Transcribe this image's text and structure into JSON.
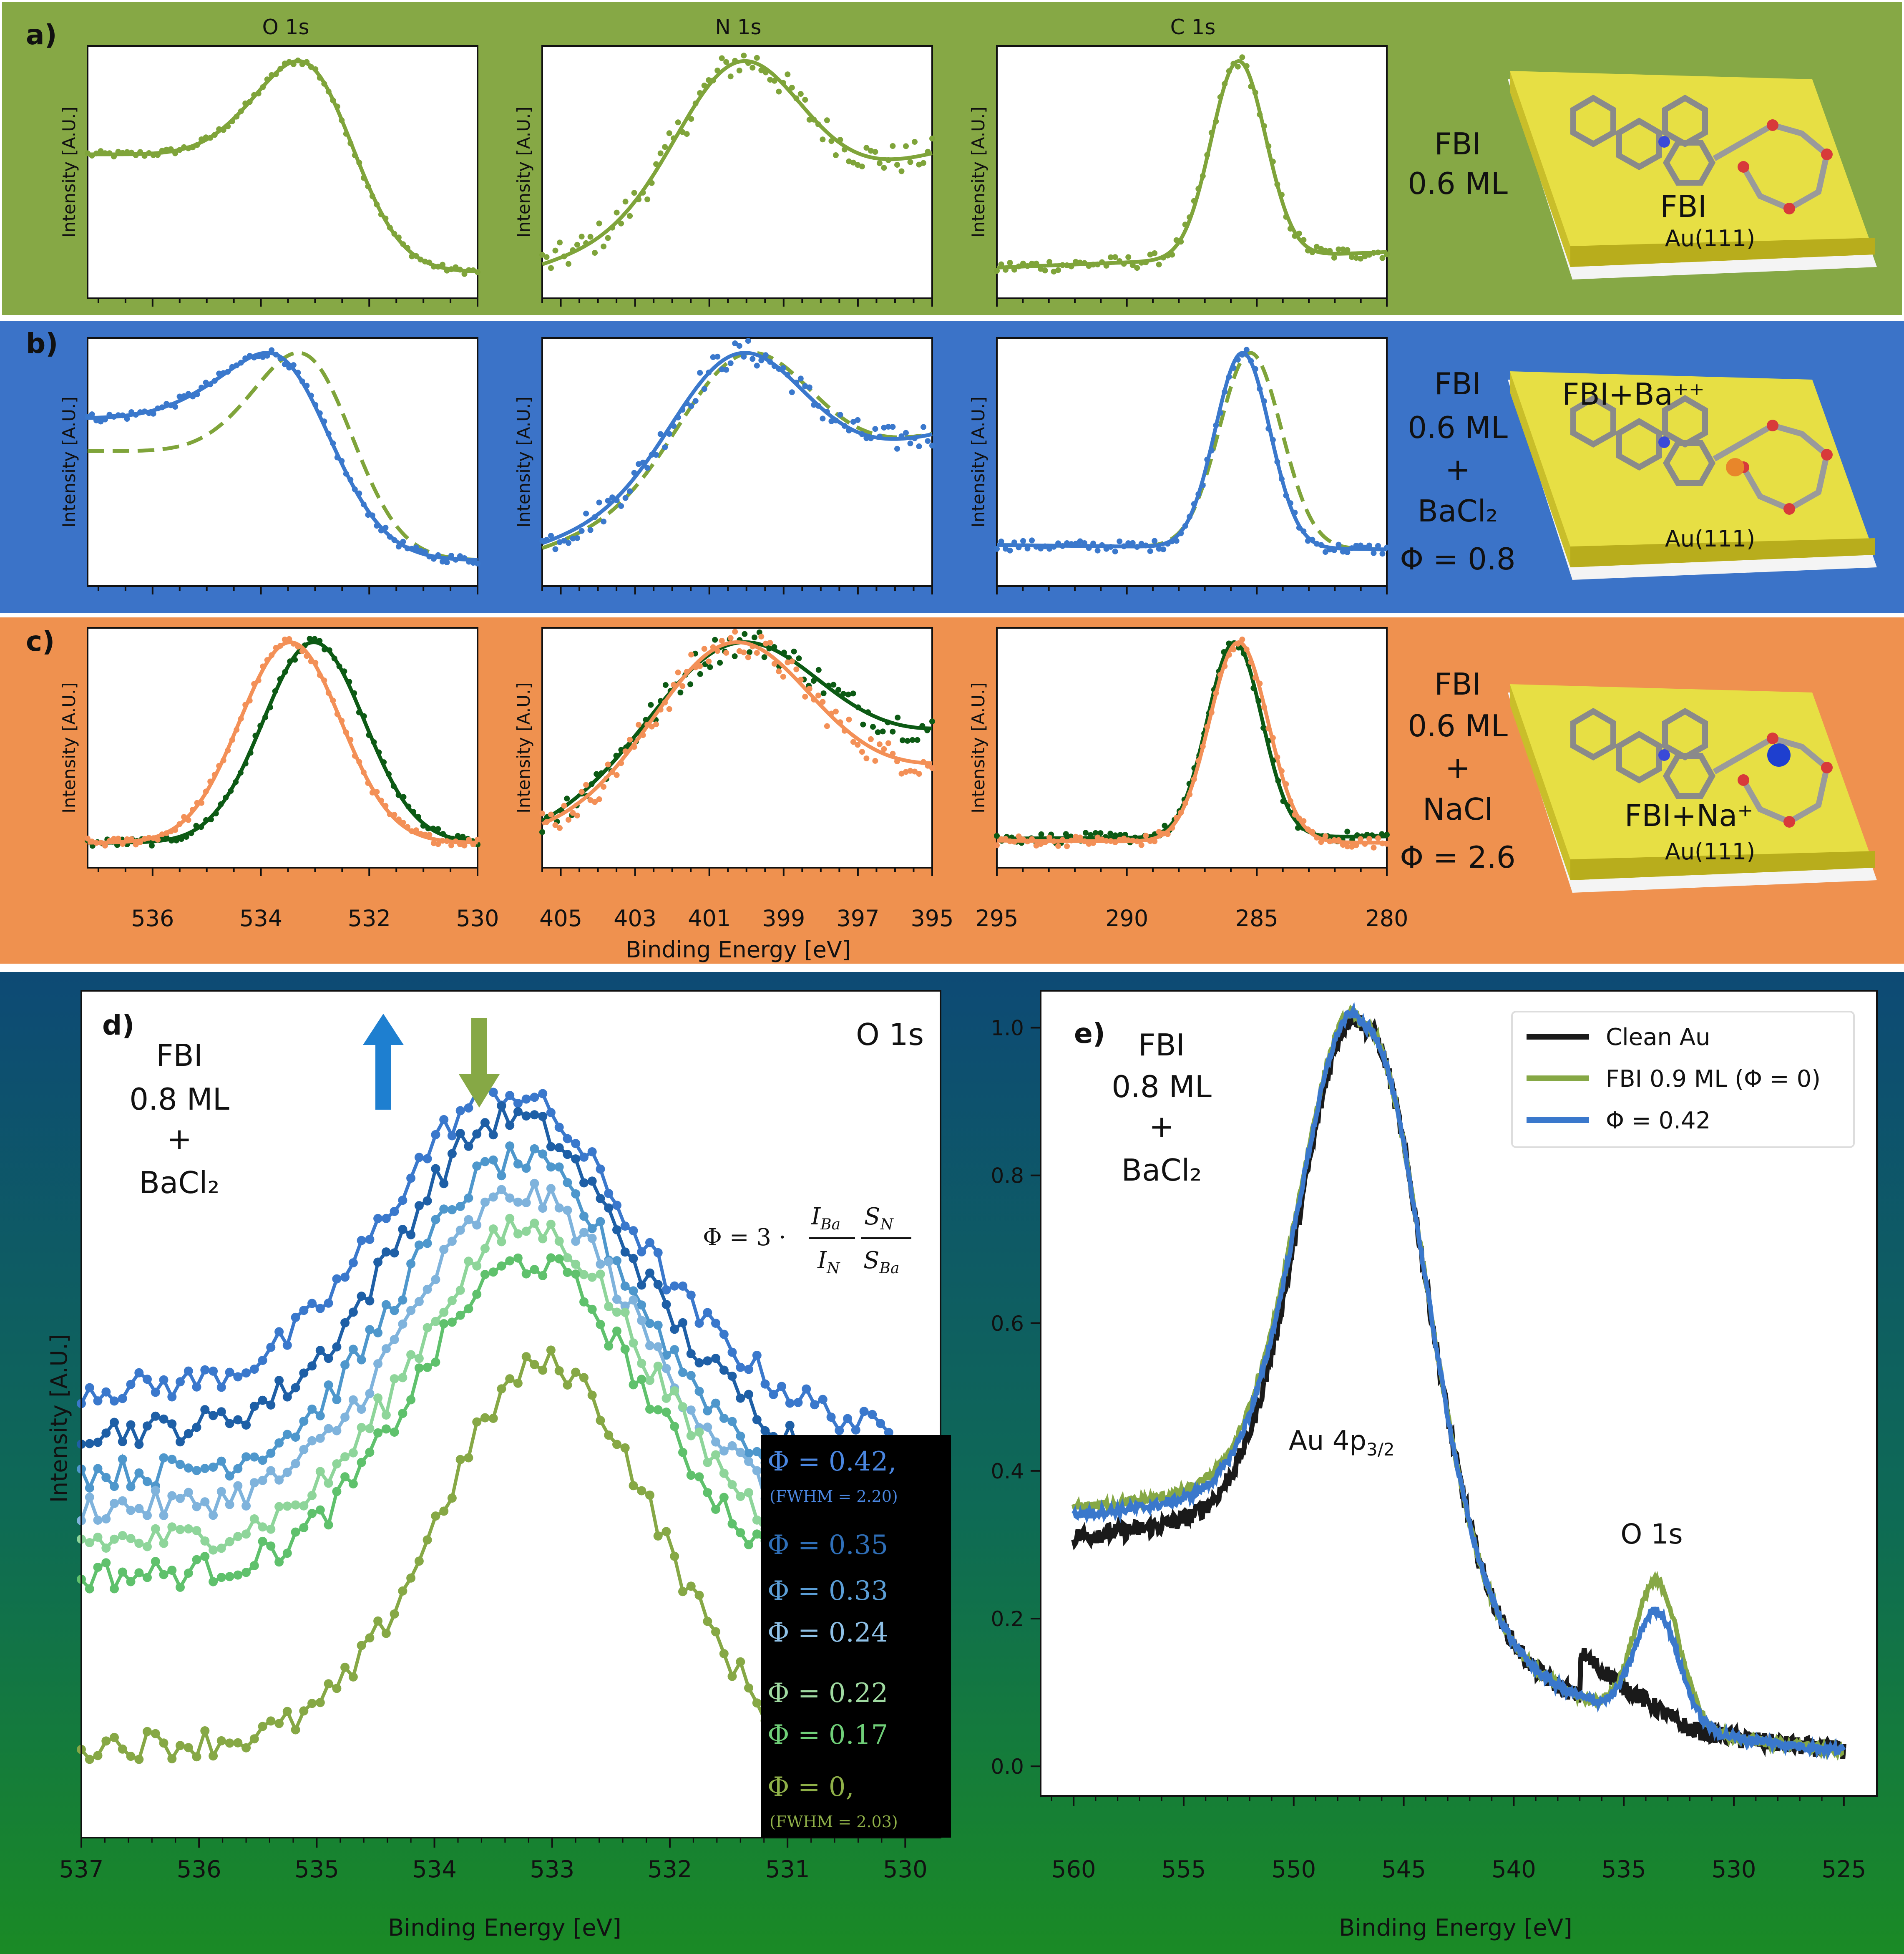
{
  "figure_labels": {
    "a": "a)",
    "b": "b)",
    "c": "c)",
    "d": "d)",
    "e": "e)"
  },
  "colors": {
    "row_a_bg": "#86a845",
    "row_b_bg": "#3b73c8",
    "row_c_bg": "#ef914f",
    "bottom_bg_top": "#0d4a75",
    "bottom_bg_bottom": "#1a8a25",
    "fbi_green": "#7fa43a",
    "ba_blue": "#3a78cc",
    "na_orange": "#f39057",
    "dark_green": "#0c5a14",
    "au_slab": "#d8cf3a",
    "clean_au": "#1a1a1a"
  },
  "column_titles": [
    "O 1s",
    "N 1s",
    "C 1s"
  ],
  "panel_ylabel": "Intensity [A.U.]",
  "shared_xlabel": "Binding Energy [eV]",
  "row_a": {
    "sample": [
      "FBI",
      "0.6 ML"
    ],
    "model_label": "FBI",
    "surface": "Au(111)"
  },
  "row_b": {
    "sample": [
      "FBI",
      "0.6 ML",
      "+",
      "BaCl₂",
      "Φ = 0.8"
    ],
    "model_label": "FBI+Ba⁺⁺",
    "surface": "Au(111)"
  },
  "row_c": {
    "sample": [
      "FBI",
      "0.6 ML",
      "+",
      "NaCl",
      "Φ = 2.6"
    ],
    "model_label": "FBI+Na⁺",
    "surface": "Au(111)"
  },
  "panel_d": {
    "sample": [
      "FBI",
      "0.8 ML",
      "+",
      "BaCl₂"
    ],
    "title": "O 1s",
    "ylabel": "Intensity [A.U.]",
    "xlabel": "Binding Energy [eV]",
    "formula": {
      "lhs": "Φ = 3 ·",
      "num1": "I",
      "num1_sub": "Ba",
      "den1": "I",
      "den1_sub": "N",
      "num2": "S",
      "num2_sub": "N",
      "den2": "S",
      "den2_sub": "Ba"
    },
    "legend": [
      {
        "text": "Φ = 0.42,",
        "note": "(FWHM = 2.20)",
        "color": "#4a86e0"
      },
      {
        "text": "Φ = 0.35",
        "color": "#2f6fb8"
      },
      {
        "text": "Φ = 0.33",
        "color": "#5b9ed6"
      },
      {
        "text": "Φ = 0.24",
        "color": "#8ec0e6"
      },
      {
        "text": "Φ = 0.22",
        "color": "#9fd9a0"
      },
      {
        "text": "Φ = 0.17",
        "color": "#6fcf78"
      },
      {
        "text": "Φ = 0,",
        "note": "(FWHM = 2.03)",
        "color": "#8fb048"
      }
    ]
  },
  "panel_e": {
    "sample": [
      "FBI",
      "0.8 ML",
      "+",
      "BaCl₂"
    ],
    "annot_au": "Au 4p₃₂",
    "annot_au_main": "Au 4p",
    "annot_au_sub": "3/2",
    "annot_o": "O 1s",
    "xlabel": "Binding Energy [eV]",
    "legend": [
      {
        "label": "Clean Au",
        "color": "#1a1a1a"
      },
      {
        "label": "FBI 0.9 ML (Φ = 0)",
        "color": "#86a845"
      },
      {
        "label": "Φ = 0.42",
        "color": "#3a78cc"
      }
    ]
  },
  "chart_data": [
    {
      "type": "scatter",
      "panel": "a-c (O 1s column)",
      "title": "O 1s",
      "xlabel": "Binding Energy [eV]",
      "ylabel": "Intensity [A.U.]",
      "xlim": [
        537.2,
        530
      ],
      "ylim": [
        0,
        1.08
      ],
      "xticks": [
        536,
        534,
        532,
        530
      ],
      "series": [
        {
          "name": "FBI 0.6 ML (row a)",
          "peak_x": 533.25,
          "baseline_left": 0.62,
          "baseline_right": 0.07
        },
        {
          "name": "FBI + BaCl2 (row b)",
          "peak_x": 533.8,
          "baseline_left": 0.66,
          "baseline_right": 0.12
        },
        {
          "name": "FBI + NaCl (row c)",
          "peak_x": 533.4,
          "baseline_left": 0.07,
          "baseline_right": 0.07
        }
      ]
    },
    {
      "type": "scatter",
      "panel": "a-c (N 1s column)",
      "title": "N 1s",
      "xlabel": "Binding Energy [eV]",
      "ylabel": "Intensity [A.U.]",
      "xlim": [
        405.5,
        395
      ],
      "ylim": [
        0,
        1.08
      ],
      "xticks": [
        405,
        403,
        401,
        399,
        397,
        395
      ],
      "series": [
        {
          "name": "FBI 0.6 ML (row a)",
          "peak_x": 399.8
        },
        {
          "name": "FBI + BaCl2 (row b)",
          "peak_x": 399.8
        },
        {
          "name": "FBI + NaCl (row c)",
          "peak_x": 399.8
        }
      ]
    },
    {
      "type": "scatter",
      "panel": "a-c (C 1s column)",
      "title": "C 1s",
      "xlabel": "Binding Energy [eV]",
      "ylabel": "Intensity [A.U.]",
      "xlim": [
        295,
        280
      ],
      "ylim": [
        0,
        1.08
      ],
      "xticks": [
        295,
        290,
        285,
        280
      ],
      "series": [
        {
          "name": "FBI 0.6 ML (row a)",
          "peak_x": 285.5
        },
        {
          "name": "FBI + BaCl2 (row b)",
          "peak_x": 285.3
        },
        {
          "name": "FBI + NaCl (row c)",
          "peak_x": 285.8
        }
      ]
    },
    {
      "type": "line",
      "panel": "d",
      "title": "O 1s",
      "xlabel": "Binding Energy [eV]",
      "ylabel": "Intensity [A.U.]",
      "xlim": [
        537,
        529.7
      ],
      "ylim": [
        0,
        1.0
      ],
      "xticks": [
        537,
        536,
        535,
        534,
        533,
        532,
        531,
        530
      ],
      "series": [
        {
          "name": "Φ = 0.42",
          "fwhm": 2.2,
          "peak_x": 533.4,
          "peak_y": 0.88,
          "base": 0.53
        },
        {
          "name": "Φ = 0.35",
          "peak_x": 533.35,
          "peak_y": 0.85,
          "base": 0.48
        },
        {
          "name": "Φ = 0.33",
          "peak_x": 533.3,
          "peak_y": 0.8,
          "base": 0.43
        },
        {
          "name": "Φ = 0.24",
          "peak_x": 533.25,
          "peak_y": 0.76,
          "base": 0.39
        },
        {
          "name": "Φ = 0.22",
          "peak_x": 533.2,
          "peak_y": 0.72,
          "base": 0.35
        },
        {
          "name": "Φ = 0.17",
          "peak_x": 533.2,
          "peak_y": 0.68,
          "base": 0.31
        },
        {
          "name": "Φ = 0",
          "fwhm": 2.03,
          "peak_x": 533.05,
          "peak_y": 0.56,
          "base": 0.11
        }
      ]
    },
    {
      "type": "line",
      "panel": "e",
      "xlabel": "Binding Energy [eV]",
      "ylabel": "",
      "xlim": [
        561.5,
        523.5
      ],
      "ylim": [
        -0.04,
        1.05
      ],
      "xticks": [
        560,
        555,
        550,
        545,
        540,
        535,
        530,
        525
      ],
      "yticks": [
        0.0,
        0.2,
        0.4,
        0.6,
        0.8,
        1.0
      ],
      "series": [
        {
          "name": "Clean Au",
          "peak_x": 546.8,
          "peak_y": 1.0,
          "y_at_560": 0.29,
          "o1s_peak": null
        },
        {
          "name": "FBI 0.9 ML (Φ = 0)",
          "peak_x": 546.8,
          "peak_y": 1.0,
          "y_at_560": 0.33,
          "o1s_peak_x": 533.5,
          "o1s_peak_y": 0.29
        },
        {
          "name": "Φ = 0.42",
          "peak_x": 546.8,
          "peak_y": 1.0,
          "y_at_560": 0.32,
          "o1s_peak_x": 533.5,
          "o1s_peak_y": 0.25
        }
      ]
    }
  ]
}
